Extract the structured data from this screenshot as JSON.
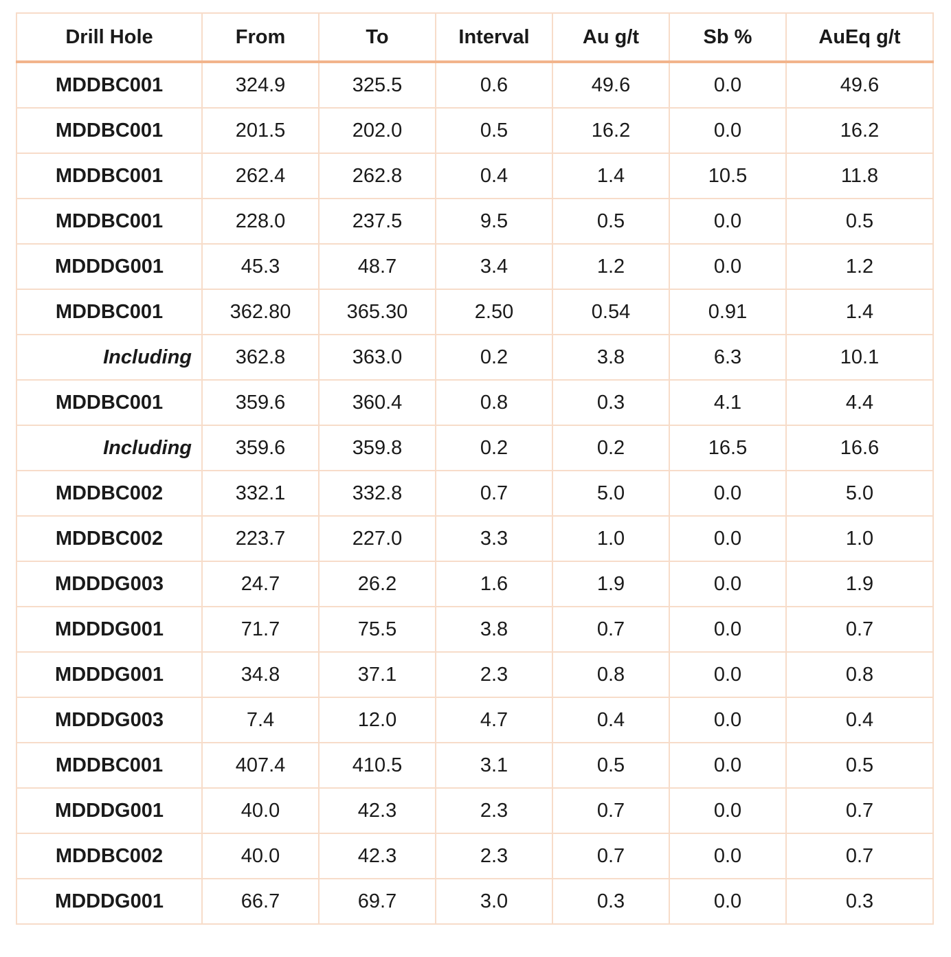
{
  "table": {
    "headers": [
      "Drill Hole",
      "From",
      "To",
      "Interval",
      "Au g/t",
      "Sb %",
      "AuEq g/t"
    ],
    "rows": [
      {
        "hole": "MDDBC001",
        "from": "324.9",
        "to": "325.5",
        "interval": "0.6",
        "au": "49.6",
        "sb": "0.0",
        "aueq": "49.6",
        "including": false
      },
      {
        "hole": "MDDBC001",
        "from": "201.5",
        "to": "202.0",
        "interval": "0.5",
        "au": "16.2",
        "sb": "0.0",
        "aueq": "16.2",
        "including": false
      },
      {
        "hole": "MDDBC001",
        "from": "262.4",
        "to": "262.8",
        "interval": "0.4",
        "au": "1.4",
        "sb": "10.5",
        "aueq": "11.8",
        "including": false
      },
      {
        "hole": "MDDBC001",
        "from": "228.0",
        "to": "237.5",
        "interval": "9.5",
        "au": "0.5",
        "sb": "0.0",
        "aueq": "0.5",
        "including": false
      },
      {
        "hole": "MDDDG001",
        "from": "45.3",
        "to": "48.7",
        "interval": "3.4",
        "au": "1.2",
        "sb": "0.0",
        "aueq": "1.2",
        "including": false
      },
      {
        "hole": "MDDBC001",
        "from": "362.80",
        "to": "365.30",
        "interval": "2.50",
        "au": "0.54",
        "sb": "0.91",
        "aueq": "1.4",
        "including": false
      },
      {
        "hole": "Including",
        "from": "362.8",
        "to": "363.0",
        "interval": "0.2",
        "au": "3.8",
        "sb": "6.3",
        "aueq": "10.1",
        "including": true
      },
      {
        "hole": "MDDBC001",
        "from": "359.6",
        "to": "360.4",
        "interval": "0.8",
        "au": "0.3",
        "sb": "4.1",
        "aueq": "4.4",
        "including": false
      },
      {
        "hole": "Including",
        "from": "359.6",
        "to": "359.8",
        "interval": "0.2",
        "au": "0.2",
        "sb": "16.5",
        "aueq": "16.6",
        "including": true
      },
      {
        "hole": "MDDBC002",
        "from": "332.1",
        "to": "332.8",
        "interval": "0.7",
        "au": "5.0",
        "sb": "0.0",
        "aueq": "5.0",
        "including": false
      },
      {
        "hole": "MDDBC002",
        "from": "223.7",
        "to": "227.0",
        "interval": "3.3",
        "au": "1.0",
        "sb": "0.0",
        "aueq": "1.0",
        "including": false
      },
      {
        "hole": "MDDDG003",
        "from": "24.7",
        "to": "26.2",
        "interval": "1.6",
        "au": "1.9",
        "sb": "0.0",
        "aueq": "1.9",
        "including": false
      },
      {
        "hole": "MDDDG001",
        "from": "71.7",
        "to": "75.5",
        "interval": "3.8",
        "au": "0.7",
        "sb": "0.0",
        "aueq": "0.7",
        "including": false
      },
      {
        "hole": "MDDDG001",
        "from": "34.8",
        "to": "37.1",
        "interval": "2.3",
        "au": "0.8",
        "sb": "0.0",
        "aueq": "0.8",
        "including": false
      },
      {
        "hole": "MDDDG003",
        "from": "7.4",
        "to": "12.0",
        "interval": "4.7",
        "au": "0.4",
        "sb": "0.0",
        "aueq": "0.4",
        "including": false
      },
      {
        "hole": "MDDBC001",
        "from": "407.4",
        "to": "410.5",
        "interval": "3.1",
        "au": "0.5",
        "sb": "0.0",
        "aueq": "0.5",
        "including": false
      },
      {
        "hole": "MDDDG001",
        "from": "40.0",
        "to": "42.3",
        "interval": "2.3",
        "au": "0.7",
        "sb": "0.0",
        "aueq": "0.7",
        "including": false
      },
      {
        "hole": "MDDBC002",
        "from": "40.0",
        "to": "42.3",
        "interval": "2.3",
        "au": "0.7",
        "sb": "0.0",
        "aueq": "0.7",
        "including": false
      },
      {
        "hole": "MDDDG001",
        "from": "66.7",
        "to": "69.7",
        "interval": "3.0",
        "au": "0.3",
        "sb": "0.0",
        "aueq": "0.3",
        "including": false
      }
    ]
  },
  "colors": {
    "header_rule": "#f2b48c",
    "grid": "#f7dcc9",
    "text": "#1a1a1a"
  }
}
